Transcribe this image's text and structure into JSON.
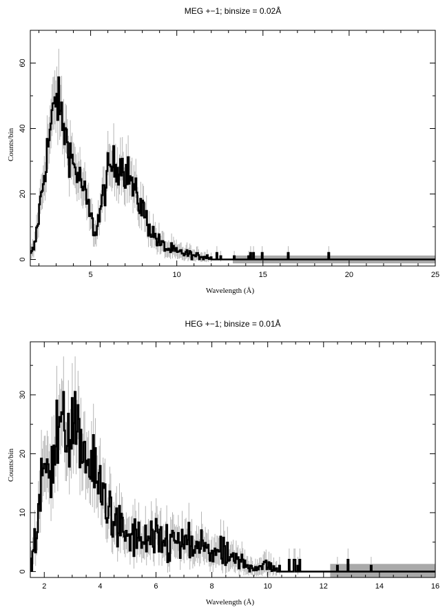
{
  "chart_data": [
    {
      "type": "line",
      "style": "histogram-steps-with-error-bars",
      "title": "MEG +−1; binsize = 0.02Å",
      "xlabel": "Wavelength (Å)",
      "ylabel": "Counts/bin",
      "xlim": [
        1.5,
        25
      ],
      "ylim": [
        -2,
        70
      ],
      "xticks": [
        5,
        10,
        15,
        20,
        25
      ],
      "xtick_labels": [
        "5",
        "10",
        "15",
        "20",
        "25"
      ],
      "yticks": [
        0,
        20,
        40,
        60
      ],
      "ytick_labels": [
        "0",
        "20",
        "40",
        "60"
      ],
      "grid": false,
      "error_color": "#b4b4b4",
      "line_color": "#000000",
      "series": [
        {
          "x": [
            1.5,
            1.75,
            2.0,
            2.25,
            2.5,
            2.75,
            3.0,
            3.25,
            3.5,
            3.75,
            4.0,
            4.25,
            4.5,
            4.75,
            5.0,
            5.25,
            5.5,
            5.75,
            6.0,
            6.25,
            6.5,
            6.75,
            7.0,
            7.25,
            7.5,
            7.75,
            8.0,
            8.25,
            8.5,
            8.75,
            9.0,
            9.25,
            9.5,
            9.75,
            10.0,
            10.25,
            10.5,
            10.75,
            11.0,
            11.25,
            11.5,
            12.0,
            12.5,
            13.0,
            13.5,
            14.0,
            14.5,
            15.0,
            16.0,
            17.0,
            18.0,
            19.0,
            20.0,
            21.0,
            22.0,
            23.0,
            24.0,
            25.0
          ],
          "y": [
            1,
            4,
            14,
            24,
            34,
            42,
            50,
            45,
            39,
            34,
            29,
            26,
            23,
            18,
            13,
            8,
            13,
            20,
            26,
            29,
            28,
            30,
            27,
            26,
            21,
            18,
            16,
            12,
            9,
            7,
            5,
            4,
            3,
            3,
            2,
            2,
            2,
            1.5,
            1,
            1,
            1,
            0.6,
            0.4,
            0.3,
            0.2,
            0.2,
            0.1,
            0.1,
            0.1,
            0.05,
            0.05,
            0.05,
            0,
            0,
            0,
            0,
            0,
            0
          ]
        }
      ]
    },
    {
      "type": "line",
      "style": "histogram-steps-with-error-bars",
      "title": "HEG +−1; binsize = 0.01Å",
      "xlabel": "Wavelength (Å)",
      "ylabel": "Counts/bin",
      "xlim": [
        1.5,
        16
      ],
      "ylim": [
        -1,
        39
      ],
      "xticks": [
        2,
        4,
        6,
        8,
        10,
        12,
        14,
        16
      ],
      "xtick_labels": [
        "2",
        "4",
        "6",
        "8",
        "10",
        "12",
        "14",
        "16"
      ],
      "yticks": [
        0,
        10,
        20,
        30
      ],
      "ytick_labels": [
        "0",
        "10",
        "20",
        "30"
      ],
      "grid": false,
      "error_color": "#b4b4b4",
      "line_color": "#000000",
      "series": [
        {
          "x": [
            1.5,
            1.7,
            1.9,
            2.1,
            2.3,
            2.5,
            2.7,
            2.9,
            3.1,
            3.3,
            3.5,
            3.7,
            3.9,
            4.1,
            4.3,
            4.5,
            4.7,
            4.9,
            5.1,
            5.3,
            5.5,
            5.7,
            5.9,
            6.1,
            6.3,
            6.5,
            6.7,
            6.9,
            7.1,
            7.3,
            7.5,
            7.7,
            7.9,
            8.1,
            8.3,
            8.5,
            8.7,
            8.9,
            9.1,
            9.3,
            9.5,
            9.7,
            10.0,
            10.5,
            11.0,
            11.5,
            12.0,
            12.5,
            13.0,
            14.0,
            15.0,
            16.0
          ],
          "y": [
            1,
            6,
            14,
            19,
            21,
            23,
            24,
            24,
            23,
            22,
            20,
            17,
            15,
            13,
            11,
            9,
            7,
            6,
            6,
            5.5,
            5,
            5,
            5,
            5,
            5,
            5,
            5,
            4.5,
            4.5,
            4,
            4,
            4,
            3.5,
            3.5,
            3,
            2.5,
            2,
            1.5,
            1.5,
            1,
            1,
            1,
            0.8,
            0.5,
            0.4,
            0.3,
            0.3,
            0.2,
            0.2,
            0.1,
            0.1,
            0.1
          ]
        }
      ]
    }
  ]
}
